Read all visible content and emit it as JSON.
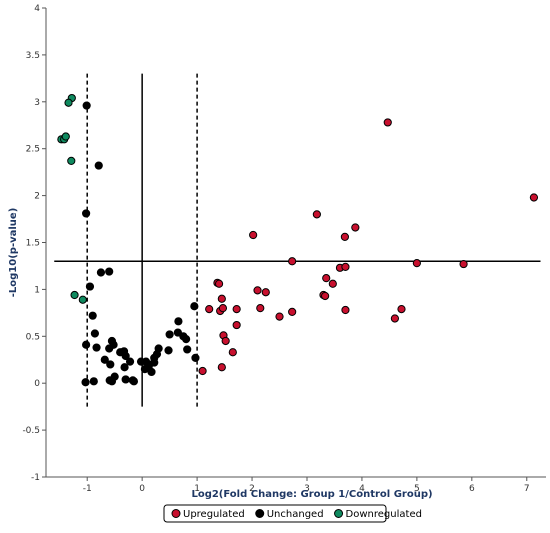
{
  "chart_data": {
    "type": "scatter",
    "xlabel": "Log2(Fold Change: Group 1/Control Group)",
    "ylabel": "-Log10(p-value)",
    "xlim": [
      -1.75,
      7.35
    ],
    "ylim": [
      -1,
      4
    ],
    "xticks": [
      "-1",
      "0",
      "1",
      "2",
      "3",
      "4",
      "5",
      "6",
      "7"
    ],
    "yticks": [
      "-1",
      "-0.5",
      "0",
      "0.5",
      "1",
      "1.5",
      "2",
      "2.5",
      "3",
      "3.5",
      "4"
    ],
    "grid": false,
    "legend_position": "bottom-center",
    "reference_lines": {
      "vertical_solid": [
        0
      ],
      "vertical_dashed": [
        -1,
        1
      ],
      "horizontal_solid": [
        1.3
      ]
    },
    "series": [
      {
        "name": "Upregulated",
        "color": "#c8102e",
        "points": [
          [
            1.1,
            0.13
          ],
          [
            1.22,
            0.79
          ],
          [
            1.37,
            1.07
          ],
          [
            1.4,
            1.06
          ],
          [
            1.42,
            0.77
          ],
          [
            1.45,
            0.9
          ],
          [
            1.47,
            0.8
          ],
          [
            1.45,
            0.17
          ],
          [
            1.48,
            0.51
          ],
          [
            1.52,
            0.45
          ],
          [
            1.65,
            0.33
          ],
          [
            1.72,
            0.62
          ],
          [
            1.72,
            0.79
          ],
          [
            2.02,
            1.58
          ],
          [
            2.1,
            0.99
          ],
          [
            2.15,
            0.8
          ],
          [
            2.25,
            0.97
          ],
          [
            2.5,
            0.71
          ],
          [
            2.73,
            1.3
          ],
          [
            2.73,
            0.76
          ],
          [
            3.18,
            1.8
          ],
          [
            3.3,
            0.94
          ],
          [
            3.33,
            0.93
          ],
          [
            3.35,
            1.12
          ],
          [
            3.47,
            1.06
          ],
          [
            3.6,
            1.23
          ],
          [
            3.7,
            1.24
          ],
          [
            3.69,
            1.56
          ],
          [
            3.7,
            0.78
          ],
          [
            3.88,
            1.66
          ],
          [
            4.47,
            2.78
          ],
          [
            4.6,
            0.69
          ],
          [
            4.72,
            0.79
          ],
          [
            5.0,
            1.28
          ],
          [
            5.85,
            1.27
          ],
          [
            7.13,
            1.98
          ]
        ]
      },
      {
        "name": "Unchanged",
        "color": "#000000",
        "points": [
          [
            -1.01,
            2.96
          ],
          [
            -0.79,
            2.32
          ],
          [
            -1.02,
            1.81
          ],
          [
            -0.95,
            1.03
          ],
          [
            -0.75,
            1.18
          ],
          [
            -0.6,
            1.19
          ],
          [
            -0.9,
            0.72
          ],
          [
            -0.86,
            0.53
          ],
          [
            -1.02,
            0.41
          ],
          [
            -0.83,
            0.38
          ],
          [
            -0.68,
            0.25
          ],
          [
            -0.58,
            0.2
          ],
          [
            -0.55,
            0.45
          ],
          [
            -0.52,
            0.41
          ],
          [
            -0.6,
            0.37
          ],
          [
            -0.4,
            0.33
          ],
          [
            -0.33,
            0.34
          ],
          [
            -0.3,
            0.29
          ],
          [
            -0.32,
            0.17
          ],
          [
            -0.22,
            0.23
          ],
          [
            -0.5,
            0.07
          ],
          [
            -0.55,
            0.02
          ],
          [
            -0.59,
            0.03
          ],
          [
            -0.3,
            0.04
          ],
          [
            -0.17,
            0.03
          ],
          [
            -0.15,
            0.02
          ],
          [
            -1.03,
            0.01
          ],
          [
            -0.88,
            0.02
          ],
          [
            -0.02,
            0.23
          ],
          [
            0.07,
            0.23
          ],
          [
            0.12,
            0.18
          ],
          [
            0.05,
            0.15
          ],
          [
            0.17,
            0.12
          ],
          [
            0.12,
            0.2
          ],
          [
            0.22,
            0.27
          ],
          [
            0.27,
            0.31
          ],
          [
            0.3,
            0.37
          ],
          [
            0.22,
            0.22
          ],
          [
            0.5,
            0.52
          ],
          [
            0.48,
            0.35
          ],
          [
            0.65,
            0.54
          ],
          [
            0.66,
            0.66
          ],
          [
            0.75,
            0.5
          ],
          [
            0.8,
            0.47
          ],
          [
            0.82,
            0.36
          ],
          [
            0.95,
            0.82
          ],
          [
            0.97,
            0.27
          ]
        ]
      },
      {
        "name": "Downregulated",
        "color": "#0f8a5f",
        "points": [
          [
            -1.28,
            3.04
          ],
          [
            -1.34,
            2.99
          ],
          [
            -1.47,
            2.6
          ],
          [
            -1.42,
            2.6
          ],
          [
            -1.39,
            2.63
          ],
          [
            -1.29,
            2.37
          ],
          [
            -1.23,
            0.94
          ],
          [
            -1.08,
            0.89
          ]
        ]
      }
    ]
  }
}
